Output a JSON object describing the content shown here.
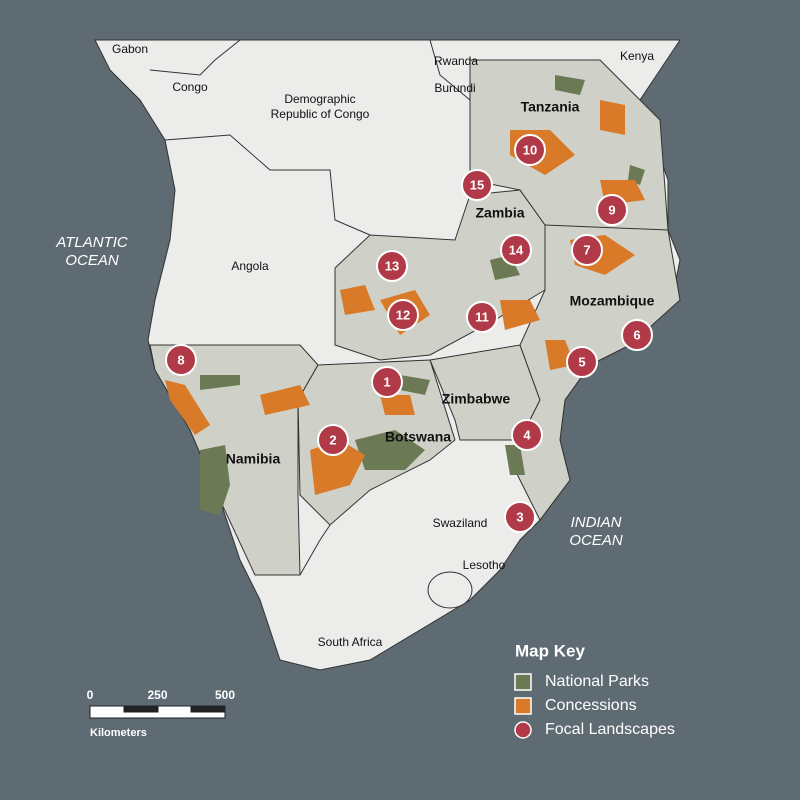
{
  "countries": [
    {
      "lines": [
        "Gabon"
      ]
    },
    {
      "lines": [
        "Congo"
      ]
    },
    {
      "lines": [
        "Demographic",
        "Republic of Congo"
      ]
    },
    {
      "lines": [
        "Rwanda"
      ]
    },
    {
      "lines": [
        "Burundi"
      ]
    },
    {
      "lines": [
        "Kenya"
      ]
    },
    {
      "lines": [
        "Angola"
      ]
    },
    {
      "lines": [
        "Tanzania"
      ],
      "bold": true
    },
    {
      "lines": [
        "Zambia"
      ],
      "bold": true
    },
    {
      "lines": [
        "Mozambique"
      ],
      "bold": true
    },
    {
      "lines": [
        "Zimbabwe"
      ],
      "bold": true
    },
    {
      "lines": [
        "Botswana"
      ],
      "bold": true
    },
    {
      "lines": [
        "Namibia"
      ],
      "bold": true
    },
    {
      "lines": [
        "Swaziland"
      ]
    },
    {
      "lines": [
        "Lesotho"
      ]
    },
    {
      "lines": [
        "South Africa"
      ]
    }
  ],
  "oceans": [
    {
      "lines": [
        "ATLANTIC",
        "OCEAN"
      ]
    },
    {
      "lines": [
        "INDIAN",
        "OCEAN"
      ]
    }
  ],
  "focal_landscapes": [
    "1",
    "2",
    "3",
    "4",
    "5",
    "6",
    "7",
    "8",
    "9",
    "10",
    "11",
    "12",
    "13",
    "14",
    "15"
  ],
  "legend": {
    "title": "Map Key",
    "items": [
      {
        "label": "National Parks",
        "color": "#6b7a55"
      },
      {
        "label": "Concessions",
        "color": "#d97a29"
      },
      {
        "label": "Focal Landscapes",
        "color": "#b03a48"
      }
    ]
  },
  "scale_bar": {
    "ticks": [
      0,
      250,
      500
    ],
    "unit": "Kilometers"
  }
}
